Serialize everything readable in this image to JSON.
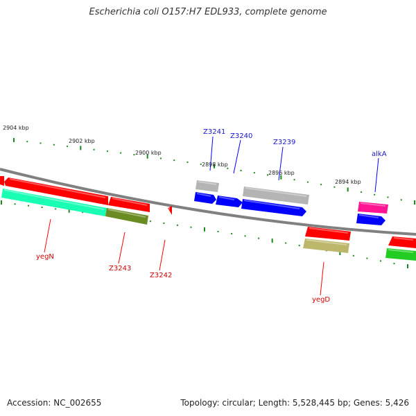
{
  "title": "Escherichia coli O157:H7 EDL933, complete genome",
  "footer": {
    "accession": "Accession: NC_002655",
    "info": "Topology: circular; Length: 5,528,445 bp; Genes: 5,426"
  },
  "scale_labels": [
    {
      "text": "2904 kbp"
    },
    {
      "text": "2902 kbp"
    },
    {
      "text": "2900 kbp"
    },
    {
      "text": "2898 kbp"
    },
    {
      "text": "2896 kbp"
    },
    {
      "text": "2894 kbp"
    }
  ],
  "gene_labels_outer": [
    {
      "text": "Z3241",
      "color": "#1515c8"
    },
    {
      "text": "Z3240",
      "color": "#1515c8"
    },
    {
      "text": "Z3239",
      "color": "#1515c8"
    },
    {
      "text": "alkA",
      "color": "#1515c8"
    }
  ],
  "gene_labels_inner": [
    {
      "text": "yegN",
      "color": "#cc0000"
    },
    {
      "text": "Z3243",
      "color": "#cc0000"
    },
    {
      "text": "Z3242",
      "color": "#cc0000"
    },
    {
      "text": "yegD",
      "color": "#cc0000"
    }
  ],
  "colors": {
    "backbone": "#808080",
    "tick": "#1a8a1a",
    "red": "#ff0000",
    "blue": "#0000ff",
    "grey": "#b4b4b4",
    "pink": "#ff1493",
    "teal": "#19ffb4",
    "olive": "#6b8c23",
    "khaki": "#bdb76b",
    "green": "#22cc22"
  }
}
